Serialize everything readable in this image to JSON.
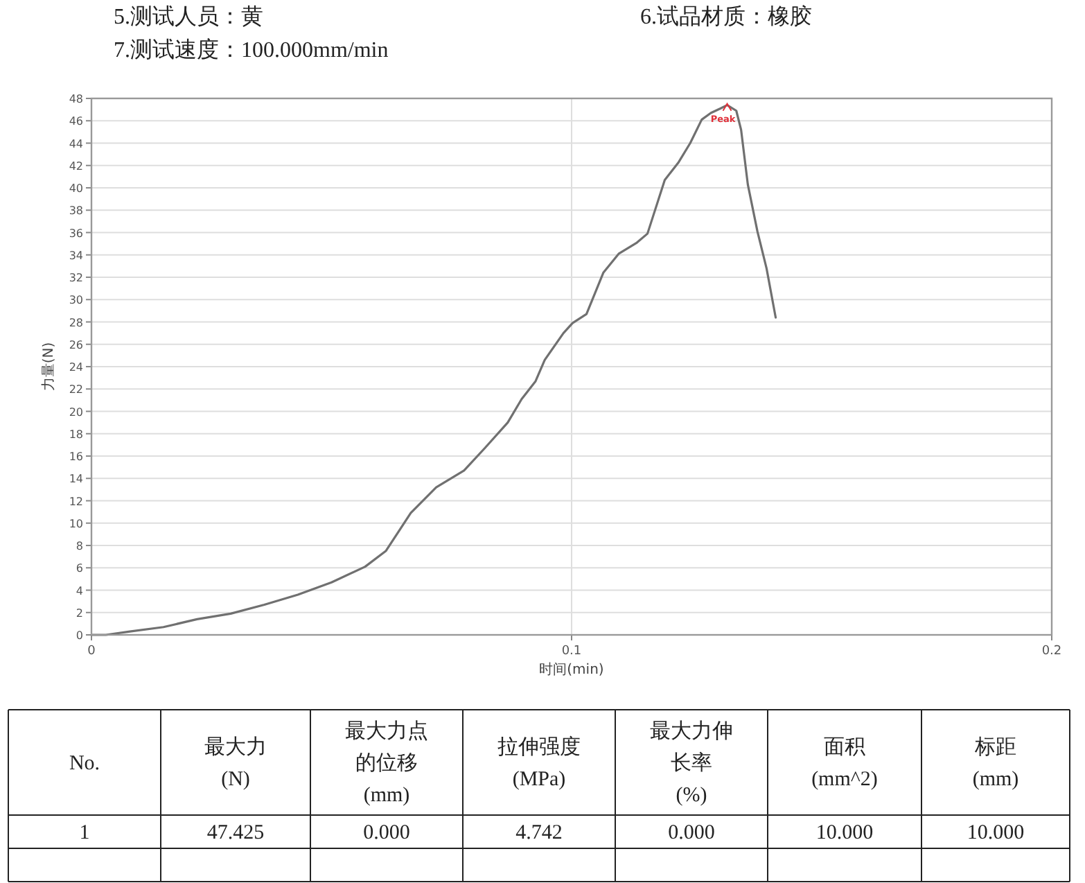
{
  "chart_data": {
    "type": "line",
    "xlabel": "时间(min)",
    "ylabel": "力量(N)",
    "xlim": [
      0,
      0.2
    ],
    "xticks": [
      0,
      0.1,
      0.2
    ],
    "ylim": [
      0,
      48
    ],
    "yticks": [
      0,
      2,
      4,
      6,
      8,
      10,
      12,
      14,
      16,
      18,
      20,
      22,
      24,
      26,
      28,
      30,
      32,
      34,
      36,
      38,
      40,
      42,
      44,
      46,
      48
    ],
    "grid": true,
    "series": [
      {
        "color": "#707070",
        "x": [
          0,
          0.003,
          0.008,
          0.015,
          0.022,
          0.029,
          0.036,
          0.043,
          0.05,
          0.057,
          0.0613,
          0.0665,
          0.0718,
          0.0776,
          0.0819,
          0.0867,
          0.0896,
          0.0925,
          0.0944,
          0.0983,
          0.1002,
          0.1031,
          0.1066,
          0.1098,
          0.1136,
          0.1158,
          0.1194,
          0.1223,
          0.1247,
          0.1271,
          0.129,
          0.131,
          0.1324,
          0.1343,
          0.1353,
          0.1367,
          0.1387,
          0.1406,
          0.1425
        ],
        "values": [
          0,
          0,
          0.3,
          0.7,
          1.4,
          1.9,
          2.7,
          3.6,
          4.7,
          6.1,
          7.5,
          10.9,
          13.2,
          14.7,
          16.7,
          19.0,
          21.1,
          22.7,
          24.6,
          27.0,
          27.9,
          28.7,
          32.4,
          34.1,
          35.1,
          35.9,
          40.7,
          42.3,
          44.0,
          46.1,
          46.7,
          47.1,
          47.4,
          46.9,
          45.2,
          40.3,
          36.1,
          32.8,
          28.4
        ]
      }
    ],
    "annotations": [
      "5.测试人员：黄",
      "6.试品材质：橡胶",
      "7.测试速度：100.000mm/min",
      "No.",
      "最大力\n(N)",
      "最大力点的位移\n(mm)",
      "拉伸强度\n(MPa)",
      "最大力伸长率\n(%)",
      "面积\n(mm^2)",
      "标距\n(mm)",
      "1",
      "47.425",
      "0.000",
      "4.742",
      "0.000",
      "10.000",
      "10.000",
      {
        "text": "Peak",
        "x": 0.1324,
        "y": 47.4
      }
    ]
  }
}
